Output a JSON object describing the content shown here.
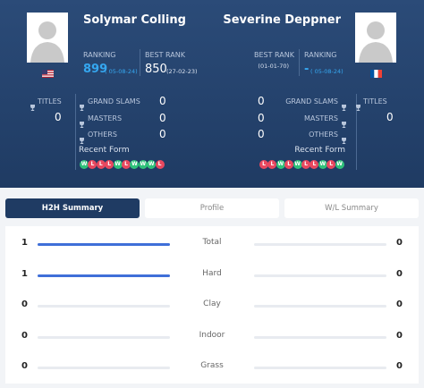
{
  "player1": {
    "name": "Solymar Colling",
    "ranking_label": "RANKING",
    "ranking": 899,
    "ranking_date": "( 05-08-24)",
    "best_rank_label": "BEST RANK",
    "best_rank": 850,
    "best_rank_date": "(27-02-23)",
    "titles_label": "TITLES",
    "titles": 0,
    "stats": [
      {
        "label": "GRAND SLAMS",
        "value": 0
      },
      {
        "label": "MASTERS",
        "value": 0
      },
      {
        "label": "OTHERS",
        "value": 0
      }
    ],
    "recent_form_label": "Recent Form",
    "recent_form": [
      "W",
      "L",
      "L",
      "L",
      "W",
      "L",
      "W",
      "W",
      "W",
      "L"
    ]
  },
  "player2": {
    "name": "Severine Deppner",
    "ranking_label": "RANKING",
    "ranking": "-",
    "ranking_date": "( 05-08-24)",
    "best_rank_label": "BEST RANK",
    "best_rank_date": "(01-01-70)",
    "titles_label": "TITLES",
    "titles": 0,
    "stats": [
      {
        "label": "GRAND SLAMS",
        "value": 0
      },
      {
        "label": "MASTERS",
        "value": 0
      },
      {
        "label": "OTHERS",
        "value": 0
      }
    ],
    "recent_form_label": "Recent Form",
    "recent_form": [
      "L",
      "L",
      "W",
      "L",
      "W",
      "L",
      "L",
      "W",
      "L",
      "W"
    ]
  },
  "tabs": [
    "H2H Summary",
    "Profile",
    "W/L Summary"
  ],
  "summary": [
    {
      "label": "Total",
      "player1": 1,
      "player2": 0
    },
    {
      "label": "Hard",
      "player1": 1,
      "player2": 0
    },
    {
      "label": "Clay",
      "player1": 0,
      "player2": 0
    },
    {
      "label": "Indoor",
      "player1": 0,
      "player2": 0
    },
    {
      "label": "Grass",
      "player1": 0,
      "player2": 0
    }
  ]
}
